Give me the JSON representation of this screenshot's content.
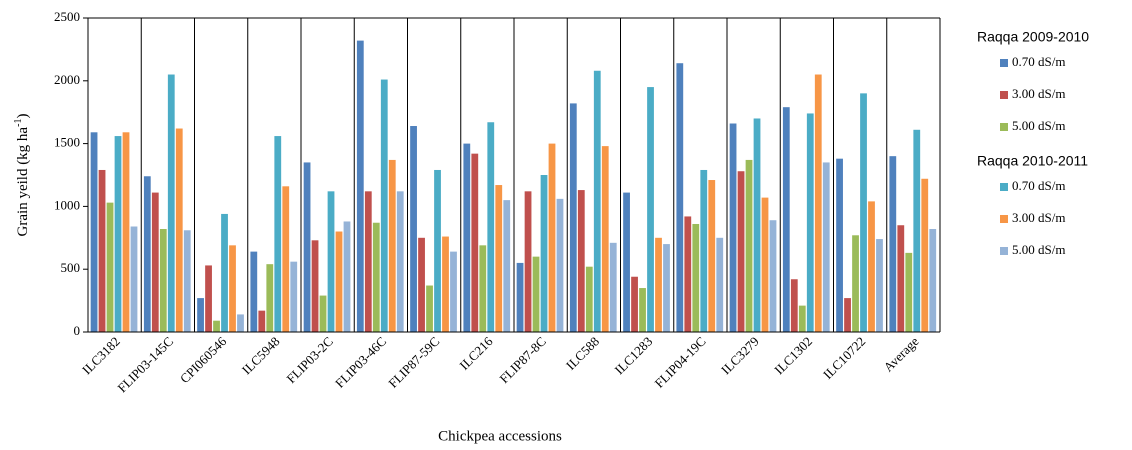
{
  "chart_data": {
    "type": "bar",
    "y_label": [
      "Grain yeild (kg ha",
      "-1",
      ")"
    ],
    "x_label": "Chickpea accessions",
    "categories": [
      "ILC3182",
      "FLIP03-145C",
      "CPI060546",
      "ILC5948",
      "FLIP03-2C",
      "FLIP03-46C",
      "FLIP87-59C",
      "ILC216",
      "FLIP87-8C",
      "ILC588",
      "ILC1283",
      "FLIP04-19C",
      "ILC3279",
      "ILC1302",
      "ILC10722",
      "Average"
    ],
    "legend_groups": [
      "Raqqa 2009-2010",
      "Raqqa 2010-2011"
    ],
    "series": [
      {
        "name": "0.70 dS/m",
        "group": 0,
        "color": "#4f81bd",
        "values": [
          1590,
          1240,
          270,
          640,
          1350,
          2320,
          1640,
          1500,
          550,
          1820,
          1110,
          2140,
          1660,
          1790,
          1380,
          1400
        ]
      },
      {
        "name": "3.00 dS/m",
        "group": 0,
        "color": "#c0504d",
        "values": [
          1290,
          1110,
          530,
          170,
          730,
          1120,
          750,
          1420,
          1120,
          1130,
          440,
          920,
          1280,
          420,
          270,
          850
        ]
      },
      {
        "name": "5.00 dS/m",
        "group": 0,
        "color": "#9bbb59",
        "values": [
          1030,
          820,
          90,
          540,
          290,
          870,
          370,
          690,
          600,
          520,
          350,
          860,
          1370,
          210,
          770,
          630
        ]
      },
      {
        "name": "0.70 dS/m",
        "group": 1,
        "color": "#4bacc6",
        "values": [
          1560,
          2050,
          940,
          1560,
          1120,
          2010,
          1290,
          1670,
          1250,
          2080,
          1950,
          1290,
          1700,
          1740,
          1900,
          1610
        ]
      },
      {
        "name": "3.00 dS/m",
        "group": 1,
        "color": "#f79646",
        "values": [
          1590,
          1620,
          690,
          1160,
          800,
          1370,
          760,
          1170,
          1500,
          1480,
          750,
          1210,
          1070,
          2050,
          1040,
          1220
        ]
      },
      {
        "name": "5.00 dS/m",
        "group": 1,
        "color": "#95b3d7",
        "values": [
          840,
          810,
          140,
          560,
          880,
          1120,
          640,
          1050,
          1060,
          710,
          700,
          750,
          890,
          1350,
          740,
          820
        ]
      }
    ],
    "ylim": [
      0,
      2500
    ],
    "yticks": [
      0,
      500,
      1000,
      1500,
      2000,
      2500
    ],
    "grid": false
  }
}
